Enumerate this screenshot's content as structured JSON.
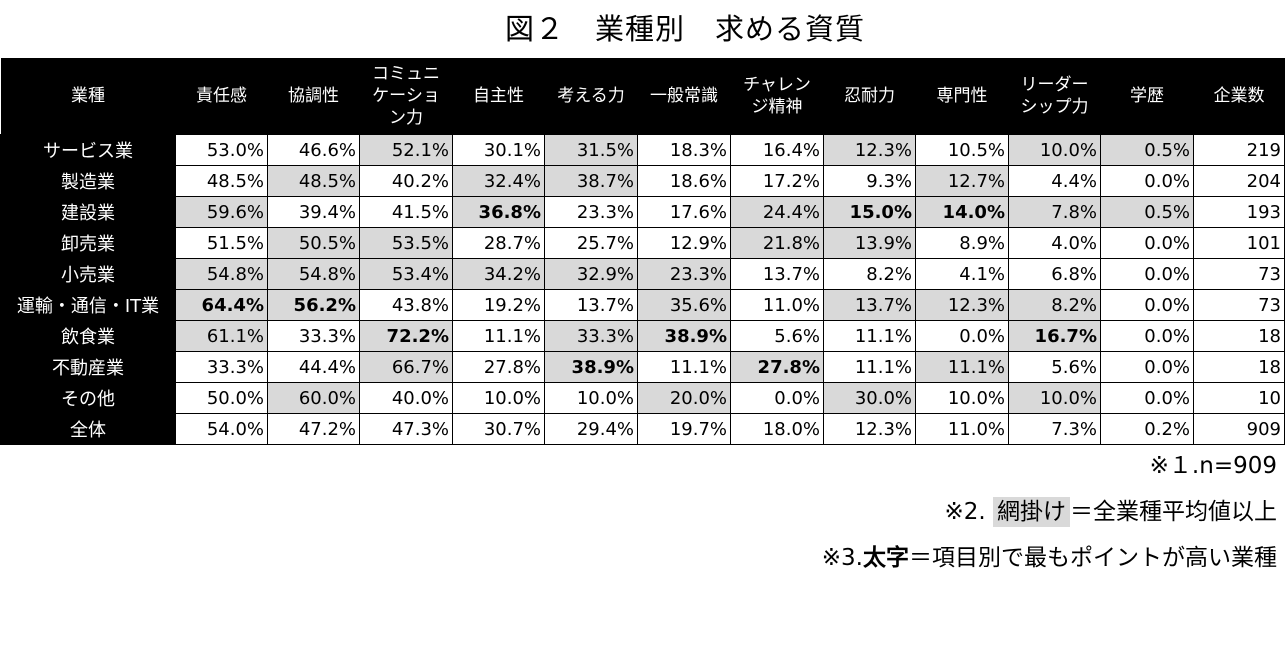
{
  "chart_data": {
    "type": "table",
    "title": "図２　業種別　求める資質",
    "columns": [
      "業種",
      "責任感",
      "協調性",
      "コミュニ\nケーショ\nン力",
      "自主性",
      "考える力",
      "一般常識",
      "チャレン\nジ精神",
      "忍耐力",
      "専門性",
      "リーダー\nシップ力",
      "学歴",
      "企業数"
    ],
    "rows": [
      {
        "label": "サービス業",
        "values": [
          "53.0%",
          "46.6%",
          "52.1%",
          "30.1%",
          "31.5%",
          "18.3%",
          "16.4%",
          "12.3%",
          "10.5%",
          "10.0%",
          "0.5%",
          "219"
        ],
        "shaded": [
          0,
          0,
          1,
          0,
          1,
          0,
          0,
          1,
          0,
          1,
          1,
          0
        ],
        "bold": [
          0,
          0,
          0,
          0,
          0,
          0,
          0,
          0,
          0,
          0,
          0,
          0
        ]
      },
      {
        "label": "製造業",
        "values": [
          "48.5%",
          "48.5%",
          "40.2%",
          "32.4%",
          "38.7%",
          "18.6%",
          "17.2%",
          "9.3%",
          "12.7%",
          "4.4%",
          "0.0%",
          "204"
        ],
        "shaded": [
          0,
          1,
          0,
          1,
          1,
          0,
          0,
          0,
          1,
          0,
          0,
          0
        ],
        "bold": [
          0,
          0,
          0,
          0,
          0,
          0,
          0,
          0,
          0,
          0,
          0,
          0
        ]
      },
      {
        "label": "建設業",
        "values": [
          "59.6%",
          "39.4%",
          "41.5%",
          "36.8%",
          "23.3%",
          "17.6%",
          "24.4%",
          "15.0%",
          "14.0%",
          "7.8%",
          "0.5%",
          "193"
        ],
        "shaded": [
          1,
          0,
          0,
          1,
          0,
          0,
          1,
          1,
          1,
          1,
          1,
          0
        ],
        "bold": [
          0,
          0,
          0,
          1,
          0,
          0,
          0,
          1,
          1,
          0,
          0,
          0
        ]
      },
      {
        "label": "卸売業",
        "values": [
          "51.5%",
          "50.5%",
          "53.5%",
          "28.7%",
          "25.7%",
          "12.9%",
          "21.8%",
          "13.9%",
          "8.9%",
          "4.0%",
          "0.0%",
          "101"
        ],
        "shaded": [
          0,
          1,
          1,
          0,
          0,
          0,
          1,
          1,
          0,
          0,
          0,
          0
        ],
        "bold": [
          0,
          0,
          0,
          0,
          0,
          0,
          0,
          0,
          0,
          0,
          0,
          0
        ]
      },
      {
        "label": "小売業",
        "values": [
          "54.8%",
          "54.8%",
          "53.4%",
          "34.2%",
          "32.9%",
          "23.3%",
          "13.7%",
          "8.2%",
          "4.1%",
          "6.8%",
          "0.0%",
          "73"
        ],
        "shaded": [
          1,
          1,
          1,
          1,
          1,
          1,
          0,
          0,
          0,
          0,
          0,
          0
        ],
        "bold": [
          0,
          0,
          0,
          0,
          0,
          0,
          0,
          0,
          0,
          0,
          0,
          0
        ]
      },
      {
        "label": "運輸・通信・IT業",
        "values": [
          "64.4%",
          "56.2%",
          "43.8%",
          "19.2%",
          "13.7%",
          "35.6%",
          "11.0%",
          "13.7%",
          "12.3%",
          "8.2%",
          "0.0%",
          "73"
        ],
        "shaded": [
          1,
          1,
          0,
          0,
          0,
          1,
          0,
          1,
          1,
          1,
          0,
          0
        ],
        "bold": [
          1,
          1,
          0,
          0,
          0,
          0,
          0,
          0,
          0,
          0,
          0,
          0
        ]
      },
      {
        "label": "飲食業",
        "values": [
          "61.1%",
          "33.3%",
          "72.2%",
          "11.1%",
          "33.3%",
          "38.9%",
          "5.6%",
          "11.1%",
          "0.0%",
          "16.7%",
          "0.0%",
          "18"
        ],
        "shaded": [
          1,
          0,
          1,
          0,
          1,
          1,
          0,
          0,
          0,
          1,
          0,
          0
        ],
        "bold": [
          0,
          0,
          1,
          0,
          0,
          1,
          0,
          0,
          0,
          1,
          0,
          0
        ]
      },
      {
        "label": "不動産業",
        "values": [
          "33.3%",
          "44.4%",
          "66.7%",
          "27.8%",
          "38.9%",
          "11.1%",
          "27.8%",
          "11.1%",
          "11.1%",
          "5.6%",
          "0.0%",
          "18"
        ],
        "shaded": [
          0,
          0,
          1,
          0,
          1,
          0,
          1,
          0,
          1,
          0,
          0,
          0
        ],
        "bold": [
          0,
          0,
          0,
          0,
          1,
          0,
          1,
          0,
          0,
          0,
          0,
          0
        ]
      },
      {
        "label": "その他",
        "values": [
          "50.0%",
          "60.0%",
          "40.0%",
          "10.0%",
          "10.0%",
          "20.0%",
          "0.0%",
          "30.0%",
          "10.0%",
          "10.0%",
          "0.0%",
          "10"
        ],
        "shaded": [
          0,
          1,
          0,
          0,
          0,
          1,
          0,
          1,
          0,
          1,
          0,
          0
        ],
        "bold": [
          0,
          0,
          0,
          0,
          0,
          0,
          0,
          0,
          0,
          0,
          0,
          0
        ]
      },
      {
        "label": "全体",
        "values": [
          "54.0%",
          "47.2%",
          "47.3%",
          "30.7%",
          "29.4%",
          "19.7%",
          "18.0%",
          "12.3%",
          "11.0%",
          "7.3%",
          "0.2%",
          "909"
        ],
        "shaded": [
          0,
          0,
          0,
          0,
          0,
          0,
          0,
          0,
          0,
          0,
          0,
          0
        ],
        "bold": [
          0,
          0,
          0,
          0,
          0,
          0,
          0,
          0,
          0,
          0,
          0,
          0
        ]
      }
    ],
    "shade_color": "#d9d9d9",
    "header_bg": "#000000"
  },
  "notes": {
    "n": "※１.n=909",
    "shade_prefix": "※2. ",
    "shade_word": "網掛け",
    "shade_suffix": "＝全業種平均値以上",
    "bold_prefix": "※3.",
    "bold_word": "太字",
    "bold_suffix": "＝項目別で最もポイントが高い業種"
  }
}
